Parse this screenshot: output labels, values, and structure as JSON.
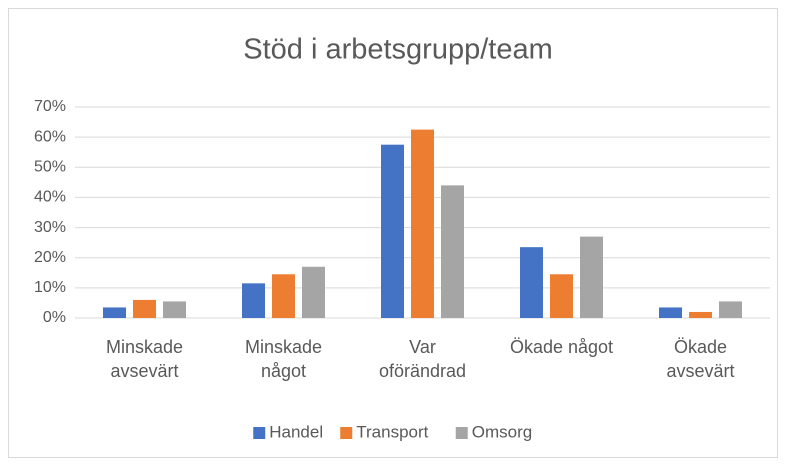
{
  "chart_data": {
    "type": "bar",
    "title": "Stöd i arbetsgrupp/team",
    "categories": [
      "Minskade\navsevärt",
      "Minskade\nnågot",
      "Var\noförändrad",
      "Ökade något",
      "Ökade\navsevärt"
    ],
    "series": [
      {
        "name": "Handel",
        "color": "#4472c4",
        "values": [
          3.5,
          11.5,
          57.5,
          23.5,
          3.5
        ]
      },
      {
        "name": "Transport",
        "color": "#ed7d31",
        "values": [
          6,
          14.5,
          62.5,
          14.5,
          2
        ]
      },
      {
        "name": "Omsorg",
        "color": "#a5a5a5",
        "values": [
          5.5,
          17,
          44,
          27,
          5.5
        ]
      }
    ],
    "ylim": [
      0,
      70
    ],
    "yticks": [
      {
        "value": 0,
        "label": "0%"
      },
      {
        "value": 10,
        "label": "10%"
      },
      {
        "value": 20,
        "label": "20%"
      },
      {
        "value": 30,
        "label": "30%"
      },
      {
        "value": 40,
        "label": "40%"
      },
      {
        "value": 50,
        "label": "50%"
      },
      {
        "value": 60,
        "label": "60%"
      },
      {
        "value": 70,
        "label": "70%"
      }
    ],
    "grid": true,
    "legend": "bottom"
  }
}
